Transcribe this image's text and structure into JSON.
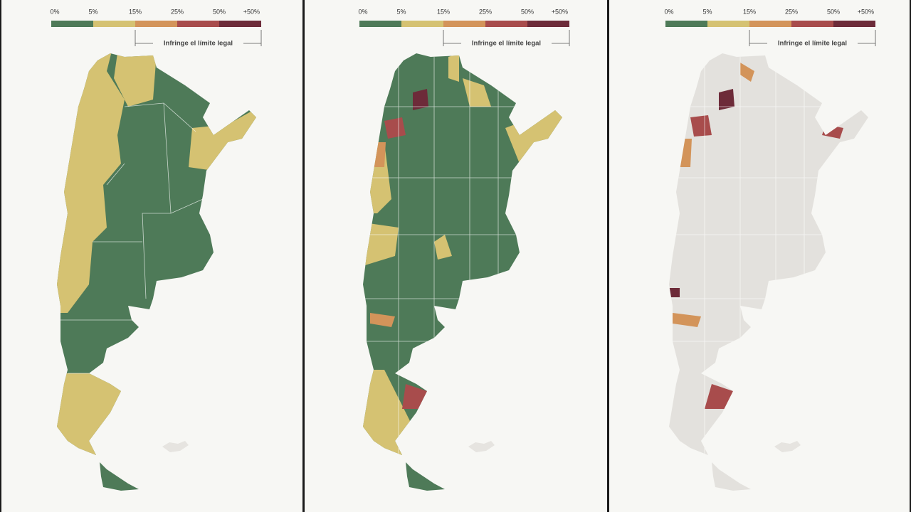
{
  "panels": [
    {
      "legend": {
        "labels": [
          "0%",
          "5%",
          "15%",
          "25%",
          "50%",
          "+50%"
        ],
        "colors": [
          "#4e7a58",
          "#d5c272",
          "#d3945a",
          "#a84c4c",
          "#6d2b39"
        ],
        "note": "Infringe el límite legal"
      }
    },
    {
      "legend": {
        "labels": [
          "0%",
          "5%",
          "15%",
          "25%",
          "50%",
          "+50%"
        ],
        "colors": [
          "#4e7a58",
          "#d5c272",
          "#d3945a",
          "#a84c4c",
          "#6d2b39"
        ],
        "note": "Infringe el límite legal"
      }
    },
    {
      "legend": {
        "labels": [
          "0%",
          "5%",
          "15%",
          "25%",
          "50%",
          "+50%"
        ],
        "colors": [
          "#4e7a58",
          "#d5c272",
          "#d3945a",
          "#a84c4c",
          "#6d2b39"
        ],
        "note": "Infringe el límite legal"
      }
    }
  ]
}
